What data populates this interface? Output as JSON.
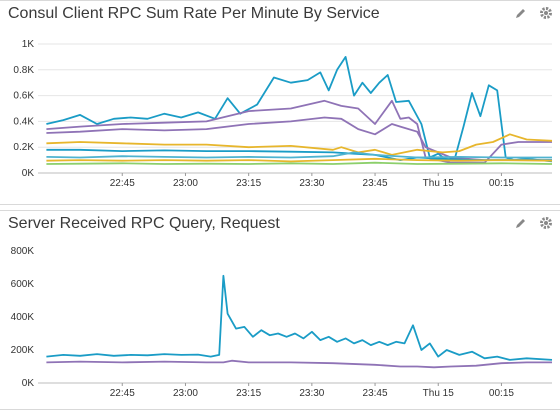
{
  "panels": [
    {
      "title": "Consul Client RPC Sum Rate Per Minute By Service",
      "icons": [
        "pencil-icon",
        "gear-icon"
      ],
      "chart_data": {
        "type": "line",
        "x_ticks": [
          "22:45",
          "23:00",
          "23:15",
          "23:30",
          "23:45",
          "Thu 15",
          "00:15"
        ],
        "y_ticks": [
          "0K",
          "0.2K",
          "0.4K",
          "0.6K",
          "0.8K",
          "1K"
        ],
        "ylim": [
          0,
          1000
        ],
        "xlim_minutes": [
          -20,
          102
        ],
        "grid": true,
        "series": [
          {
            "color": "#1a9cc6",
            "points": [
              [
                -18,
                380
              ],
              [
                -14,
                410
              ],
              [
                -10,
                450
              ],
              [
                -6,
                380
              ],
              [
                -2,
                420
              ],
              [
                2,
                430
              ],
              [
                6,
                420
              ],
              [
                10,
                460
              ],
              [
                14,
                430
              ],
              [
                18,
                470
              ],
              [
                22,
                420
              ],
              [
                25,
                580
              ],
              [
                28,
                460
              ],
              [
                32,
                530
              ],
              [
                36,
                740
              ],
              [
                40,
                700
              ],
              [
                44,
                720
              ],
              [
                47,
                780
              ],
              [
                49,
                640
              ],
              [
                51,
                800
              ],
              [
                53,
                900
              ],
              [
                55,
                600
              ],
              [
                57,
                700
              ],
              [
                59,
                620
              ],
              [
                61,
                700
              ],
              [
                63,
                760
              ],
              [
                65,
                550
              ],
              [
                68,
                560
              ],
              [
                71,
                380
              ],
              [
                73,
                120
              ],
              [
                75,
                150
              ],
              [
                77,
                100
              ],
              [
                79,
                120
              ],
              [
                81,
                360
              ],
              [
                83,
                620
              ],
              [
                85,
                440
              ],
              [
                87,
                680
              ],
              [
                89,
                640
              ],
              [
                91,
                120
              ],
              [
                93,
                100
              ],
              [
                96,
                110
              ],
              [
                99,
                100
              ],
              [
                102,
                90
              ]
            ]
          },
          {
            "color": "#8f73b6",
            "points": [
              [
                -18,
                340
              ],
              [
                -10,
                360
              ],
              [
                0,
                380
              ],
              [
                10,
                390
              ],
              [
                20,
                400
              ],
              [
                30,
                480
              ],
              [
                40,
                500
              ],
              [
                48,
                560
              ],
              [
                52,
                520
              ],
              [
                56,
                500
              ],
              [
                60,
                380
              ],
              [
                64,
                560
              ],
              [
                66,
                420
              ],
              [
                68,
                430
              ],
              [
                70,
                380
              ],
              [
                72,
                120
              ],
              [
                78,
                80
              ],
              [
                86,
                80
              ],
              [
                90,
                220
              ],
              [
                94,
                240
              ],
              [
                98,
                240
              ],
              [
                102,
                240
              ]
            ]
          },
          {
            "color": "#8f73b6",
            "points": [
              [
                -18,
                310
              ],
              [
                -10,
                320
              ],
              [
                0,
                340
              ],
              [
                10,
                330
              ],
              [
                20,
                340
              ],
              [
                30,
                380
              ],
              [
                40,
                400
              ],
              [
                48,
                430
              ],
              [
                52,
                420
              ],
              [
                56,
                340
              ],
              [
                60,
                300
              ],
              [
                64,
                380
              ],
              [
                66,
                360
              ],
              [
                70,
                320
              ],
              [
                72,
                200
              ],
              [
                78,
                120
              ],
              [
                86,
                100
              ],
              [
                90,
                100
              ],
              [
                94,
                100
              ],
              [
                98,
                100
              ],
              [
                102,
                100
              ]
            ]
          },
          {
            "color": "#e7b62c",
            "points": [
              [
                -18,
                230
              ],
              [
                -10,
                240
              ],
              [
                0,
                230
              ],
              [
                10,
                220
              ],
              [
                20,
                220
              ],
              [
                30,
                200
              ],
              [
                40,
                210
              ],
              [
                50,
                180
              ],
              [
                52,
                200
              ],
              [
                56,
                160
              ],
              [
                60,
                180
              ],
              [
                64,
                140
              ],
              [
                70,
                180
              ],
              [
                76,
                160
              ],
              [
                80,
                170
              ],
              [
                84,
                220
              ],
              [
                88,
                240
              ],
              [
                92,
                300
              ],
              [
                96,
                260
              ],
              [
                102,
                250
              ]
            ]
          },
          {
            "color": "#1a9cc6",
            "points": [
              [
                -18,
                180
              ],
              [
                -10,
                180
              ],
              [
                0,
                170
              ],
              [
                10,
                175
              ],
              [
                20,
                170
              ],
              [
                30,
                170
              ],
              [
                40,
                165
              ],
              [
                50,
                160
              ],
              [
                55,
                150
              ],
              [
                60,
                140
              ],
              [
                66,
                100
              ],
              [
                70,
                120
              ],
              [
                76,
                110
              ],
              [
                84,
                100
              ],
              [
                90,
                100
              ],
              [
                102,
                100
              ]
            ]
          },
          {
            "color": "#8ccf6b",
            "points": [
              [
                -18,
                70
              ],
              [
                -10,
                72
              ],
              [
                0,
                75
              ],
              [
                10,
                70
              ],
              [
                20,
                72
              ],
              [
                30,
                70
              ],
              [
                40,
                75
              ],
              [
                50,
                70
              ],
              [
                60,
                80
              ],
              [
                70,
                70
              ],
              [
                80,
                72
              ],
              [
                90,
                75
              ],
              [
                102,
                70
              ]
            ]
          },
          {
            "color": "#e7b62c",
            "points": [
              [
                -18,
                95
              ],
              [
                -10,
                100
              ],
              [
                0,
                95
              ],
              [
                10,
                100
              ],
              [
                20,
                95
              ],
              [
                30,
                100
              ],
              [
                40,
                90
              ],
              [
                50,
                100
              ],
              [
                60,
                110
              ],
              [
                70,
                100
              ],
              [
                80,
                95
              ],
              [
                90,
                100
              ],
              [
                102,
                95
              ]
            ]
          },
          {
            "color": "#4fb3d0",
            "points": [
              [
                -18,
                125
              ],
              [
                -10,
                120
              ],
              [
                0,
                130
              ],
              [
                10,
                125
              ],
              [
                20,
                120
              ],
              [
                30,
                125
              ],
              [
                40,
                120
              ],
              [
                50,
                130
              ],
              [
                55,
                160
              ],
              [
                60,
                140
              ],
              [
                70,
                120
              ],
              [
                80,
                125
              ],
              [
                90,
                120
              ],
              [
                102,
                120
              ]
            ]
          }
        ]
      }
    },
    {
      "title": "Server Received RPC Query, Request",
      "icons": [
        "pencil-icon",
        "gear-icon"
      ],
      "chart_data": {
        "type": "line",
        "x_ticks": [
          "22:45",
          "23:00",
          "23:15",
          "23:30",
          "23:45",
          "Thu 15",
          "00:15"
        ],
        "y_ticks": [
          "0K",
          "200K",
          "400K",
          "600K",
          "800K"
        ],
        "ylim": [
          0,
          800000
        ],
        "xlim_minutes": [
          -20,
          102
        ],
        "grid": false,
        "series": [
          {
            "color": "#1a9cc6",
            "points": [
              [
                -18,
                160000
              ],
              [
                -14,
                170000
              ],
              [
                -10,
                165000
              ],
              [
                -6,
                175000
              ],
              [
                -2,
                165000
              ],
              [
                2,
                170000
              ],
              [
                6,
                168000
              ],
              [
                10,
                175000
              ],
              [
                14,
                170000
              ],
              [
                18,
                172000
              ],
              [
                21,
                160000
              ],
              [
                23,
                170000
              ],
              [
                24,
                650000
              ],
              [
                25,
                420000
              ],
              [
                27,
                330000
              ],
              [
                29,
                340000
              ],
              [
                31,
                280000
              ],
              [
                33,
                320000
              ],
              [
                35,
                290000
              ],
              [
                37,
                300000
              ],
              [
                39,
                280000
              ],
              [
                41,
                300000
              ],
              [
                43,
                270000
              ],
              [
                45,
                310000
              ],
              [
                47,
                260000
              ],
              [
                49,
                280000
              ],
              [
                51,
                250000
              ],
              [
                53,
                270000
              ],
              [
                55,
                240000
              ],
              [
                57,
                260000
              ],
              [
                59,
                230000
              ],
              [
                61,
                250000
              ],
              [
                63,
                230000
              ],
              [
                65,
                250000
              ],
              [
                67,
                240000
              ],
              [
                69,
                350000
              ],
              [
                71,
                200000
              ],
              [
                73,
                240000
              ],
              [
                75,
                160000
              ],
              [
                77,
                200000
              ],
              [
                80,
                170000
              ],
              [
                83,
                190000
              ],
              [
                86,
                150000
              ],
              [
                89,
                160000
              ],
              [
                92,
                140000
              ],
              [
                96,
                150000
              ],
              [
                102,
                140000
              ]
            ]
          },
          {
            "color": "#8f73b6",
            "points": [
              [
                -18,
                125000
              ],
              [
                -10,
                130000
              ],
              [
                0,
                125000
              ],
              [
                10,
                130000
              ],
              [
                20,
                125000
              ],
              [
                24,
                125000
              ],
              [
                26,
                135000
              ],
              [
                30,
                125000
              ],
              [
                40,
                125000
              ],
              [
                50,
                120000
              ],
              [
                60,
                110000
              ],
              [
                66,
                100000
              ],
              [
                70,
                100000
              ],
              [
                74,
                95000
              ],
              [
                78,
                100000
              ],
              [
                84,
                105000
              ],
              [
                90,
                120000
              ],
              [
                96,
                125000
              ],
              [
                102,
                125000
              ]
            ]
          }
        ]
      }
    }
  ]
}
